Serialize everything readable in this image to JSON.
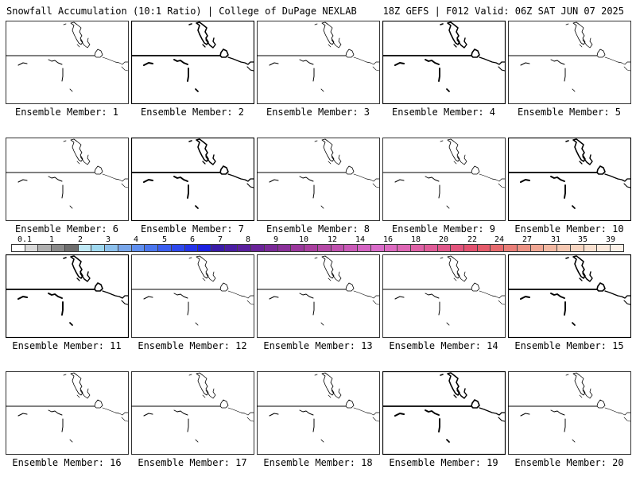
{
  "header": {
    "left": "Snowfall Accumulation (10:1 Ratio) | College of DuPage NEXLAB",
    "right": "18Z GEFS | F012 Valid: 06Z SAT JUN 07 2025"
  },
  "members": [
    "Ensemble Member: 1",
    "Ensemble Member: 2",
    "Ensemble Member: 3",
    "Ensemble Member: 4",
    "Ensemble Member: 5",
    "Ensemble Member: 6",
    "Ensemble Member: 7",
    "Ensemble Member: 8",
    "Ensemble Member: 9",
    "Ensemble Member: 10",
    "Ensemble Member: 11",
    "Ensemble Member: 12",
    "Ensemble Member: 13",
    "Ensemble Member: 14",
    "Ensemble Member: 15",
    "Ensemble Member: 16",
    "Ensemble Member: 17",
    "Ensemble Member: 18",
    "Ensemble Member: 19",
    "Ensemble Member: 20"
  ],
  "legend": {
    "labels": [
      "0.1",
      "1",
      "2",
      "3",
      "4",
      "5",
      "6",
      "7",
      "8",
      "9",
      "10",
      "12",
      "14",
      "16",
      "18",
      "20",
      "22",
      "24",
      "27",
      "31",
      "35",
      "39"
    ],
    "colors": [
      "#ffffff",
      "#d9d9d9",
      "#b0b0b0",
      "#8a8a8a",
      "#6e6e6e",
      "#bfe8f5",
      "#9fd8ef",
      "#8cc0ec",
      "#78a6ea",
      "#5f8ff0",
      "#4a76ee",
      "#3b5ef0",
      "#2e48ec",
      "#2433e8",
      "#1c20e0",
      "#3a1ca8",
      "#4a1da3",
      "#5a1f9e",
      "#6a2399",
      "#7a2a98",
      "#8a3099",
      "#9a389c",
      "#a9409f",
      "#b449a6",
      "#bf52ae",
      "#c95ab8",
      "#d363c2",
      "#d96cc9",
      "#dc6ac0",
      "#dd66b4",
      "#de61a6",
      "#df5c98",
      "#e0578a",
      "#e1547c",
      "#e25270",
      "#e45a6a",
      "#e66a6e",
      "#e97e78",
      "#ec9284",
      "#efa693",
      "#f2b8a2",
      "#f5c8b2",
      "#f7d5c1",
      "#f9e0cf",
      "#fbe9dc",
      "#fdf1e8"
    ]
  }
}
